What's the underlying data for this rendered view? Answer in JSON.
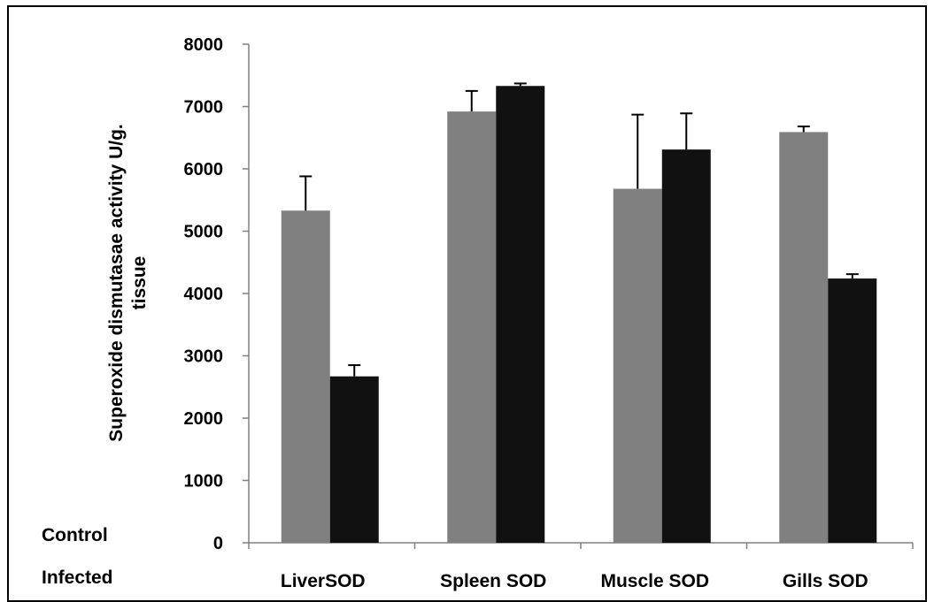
{
  "chart_data": {
    "type": "bar",
    "title": "",
    "xlabel": "",
    "ylabel_lines": [
      "Superoxide dismutasae activity  U/g.",
      "tissue"
    ],
    "categories": [
      "LiverSOD",
      "Spleen SOD",
      "Muscle SOD",
      "Gills SOD"
    ],
    "ylim": [
      0,
      8000
    ],
    "yticks": [
      0,
      1000,
      2000,
      3000,
      4000,
      5000,
      6000,
      7000,
      8000
    ],
    "grid": false,
    "series": [
      {
        "name": "Control",
        "values": [
          5330,
          6920,
          5680,
          6590
        ],
        "error": [
          550,
          330,
          1190,
          90
        ],
        "color": "#808080"
      },
      {
        "name": "Infected",
        "values": [
          2670,
          7330,
          6310,
          4240
        ],
        "error": [
          180,
          40,
          580,
          70
        ],
        "color": "#111111"
      }
    ],
    "legend_position": "bottom-left"
  }
}
